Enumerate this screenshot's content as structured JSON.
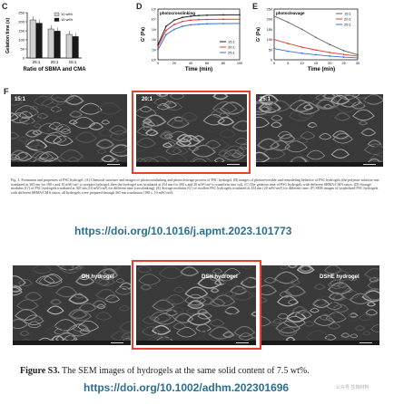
{
  "panels": {
    "c": {
      "letter": "C",
      "ylabel": "Gelation time (s)",
      "xlabel": "Ratio of SBMA and CMA",
      "legend": [
        "10 wt%",
        "15 wt%"
      ],
      "categories": [
        "25:1",
        "20:1",
        "15:1"
      ]
    },
    "d": {
      "letter": "D",
      "title": "photocrosslinking",
      "ylabel": "G' (Pa)",
      "xlabel": "Time (min)",
      "legend": [
        "15:1",
        "20:1",
        "25:1"
      ],
      "xticks": [
        "0",
        "20",
        "40",
        "60",
        "80",
        "100"
      ]
    },
    "e": {
      "letter": "E",
      "title": "photocleavage",
      "ylabel": "G' (Pa)",
      "xlabel": "Time (min)",
      "legend": [
        "15:1",
        "20:1",
        "25:1"
      ],
      "xticks": [
        "0",
        "5",
        "10",
        "15",
        "20",
        "25",
        "30"
      ],
      "yticks": [
        "250",
        "200",
        "150",
        "100",
        "50",
        "0"
      ]
    },
    "f": {
      "letter": "F",
      "images": [
        "15:1",
        "20:1",
        "25:1"
      ]
    }
  },
  "chart_data": [
    {
      "type": "bar",
      "categories": [
        "25:1",
        "20:1",
        "15:1"
      ],
      "series": [
        {
          "name": "10 wt%",
          "values": [
            210,
            160,
            130
          ]
        },
        {
          "name": "15 wt%",
          "values": [
            192,
            148,
            118
          ]
        }
      ],
      "xlabel": "Ratio of SBMA and CMA",
      "ylabel": "Gelation time (s)",
      "ylim": [
        0,
        250
      ]
    },
    {
      "type": "line",
      "title": "photocrosslinking",
      "x": [
        0,
        10,
        20,
        30,
        40,
        50,
        60,
        80,
        100
      ],
      "series": [
        {
          "name": "15:1",
          "values": [
            30,
            2000,
            8000,
            15000,
            20000,
            23000,
            25000,
            26500,
            27000
          ]
        },
        {
          "name": "20:1",
          "values": [
            20,
            800,
            3000,
            6000,
            8000,
            9000,
            9500,
            9800,
            10000
          ]
        },
        {
          "name": "25:1",
          "values": [
            10,
            300,
            1000,
            2000,
            2800,
            3200,
            3500,
            3700,
            3800
          ]
        }
      ],
      "xlabel": "Time (min)",
      "ylabel": "G' (Pa)",
      "ylog": true
    },
    {
      "type": "line",
      "title": "photocleavage",
      "x": [
        0,
        5,
        10,
        15,
        20,
        25,
        30
      ],
      "series": [
        {
          "name": "15:1",
          "values": [
            215,
            185,
            150,
            110,
            75,
            45,
            25
          ]
        },
        {
          "name": "20:1",
          "values": [
            100,
            80,
            62,
            48,
            36,
            26,
            18
          ]
        },
        {
          "name": "25:1",
          "values": [
            55,
            42,
            32,
            25,
            18,
            13,
            9
          ]
        }
      ],
      "xlabel": "Time (min)",
      "ylabel": "G' (Pa)",
      "ylim": [
        0,
        250
      ]
    }
  ],
  "caption1": "Fig. 3. Formation and properties of PSC hydrogel. (A) Chemical structure and images of photocrosslinking and photocleavage process of PSC hydrogel. (B) images of photoreversible and remodeling behavior of PSC hydrogels (the polymer solution was irradiated at 365 nm for 180 s and 10 mW/cm², to prepare hydrogel, then the hydrogel was irradiated at 254 nm for 300 s and 20 mW/cm² to transform into sol). (C) The gelation time of PSC hydrogels with different SBMA/CMA ratios. (D) Storage modulus (G') of PSC hydrogels irradiated at 365 nm (10 mW/cm²) for different time (crosslinking). (E) Storage modulus (G') of swollen PSC hydrogels irradiated at 254 nm (20 mW/cm²) for different time. (F) SEM images of lyophilized PSC hydrogels with different SBMA/CMA ratios, all hydrogels were prepared through 365 nm irradiation (180 s, 10 mW/cm²).",
  "link1": "https://doi.org/10.1016/j.apmt.2023.101773",
  "sem2": {
    "labels": [
      "DH hydrogel",
      "DSH hydrogel",
      "DSHE hydrogel"
    ]
  },
  "figure_s3": {
    "label": "Figure S3.",
    "text": " The SEM images of hydrogels at the same solid content of 7.5 wt%."
  },
  "link2": "https://doi.org/10.1002/adhm.202301696",
  "watermark": "公众号·生物材料"
}
